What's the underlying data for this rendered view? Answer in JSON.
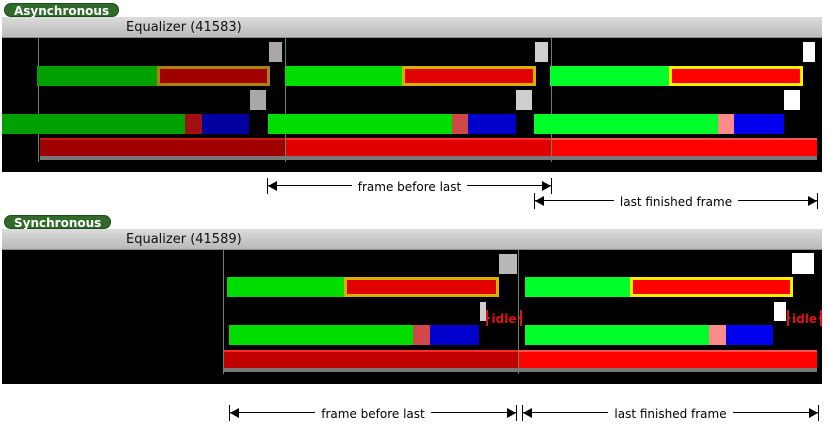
{
  "async": {
    "badge": "Asynchronous",
    "window_title": "Equalizer (41583)",
    "dim_prev": "frame before last",
    "dim_last": "last finished frame"
  },
  "sync": {
    "badge": "Synchronous",
    "window_title": "Equalizer (41589)",
    "dim_prev": "frame before last",
    "dim_last": "last finished frame",
    "idle_label": "idle"
  },
  "colors": {
    "background": "#000000",
    "green_1": "#00a000",
    "green_2": "#00dd00",
    "green_3": "#00ff2a",
    "red_1": "#a00000",
    "red_2": "#e00000",
    "red_3": "#ff0000",
    "blue": "#0000cc",
    "yellow_outline": "#ffee00",
    "idle": "#e01414"
  }
}
